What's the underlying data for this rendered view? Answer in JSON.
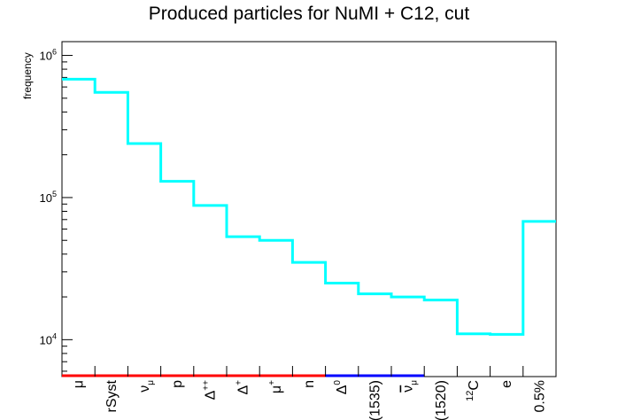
{
  "chart_data": {
    "type": "bar",
    "title": "Produced particles for NuMI + C12, cut",
    "xlabel": "",
    "ylabel": "frequency",
    "yscale": "log",
    "ylim": [
      5500,
      1250000
    ],
    "y_tick_labels": [
      "10^6",
      "10^5",
      "10^4"
    ],
    "categories": [
      "μ",
      "rSyst",
      "ν_μ",
      "p",
      "Δ^{++}",
      "Δ^{+}",
      "μ^{+}",
      "n",
      "Δ^{0}",
      "(1535)",
      "ν̄_μ",
      "(1520)",
      "^{12}C",
      "e",
      "0.5%"
    ],
    "category_display": [
      {
        "main": "μ",
        "sup": "",
        "sub": "",
        "bar": false
      },
      {
        "main": "rSyst",
        "sup": "",
        "sub": "",
        "bar": false
      },
      {
        "main": "ν",
        "sup": "",
        "sub": "μ",
        "bar": false
      },
      {
        "main": "p",
        "sup": "",
        "sub": "",
        "bar": false
      },
      {
        "main": "Δ",
        "sup": "++",
        "sub": "",
        "bar": false
      },
      {
        "main": "Δ",
        "sup": "+",
        "sub": "",
        "bar": false
      },
      {
        "main": "μ",
        "sup": "+",
        "sub": "",
        "bar": false
      },
      {
        "main": "n",
        "sup": "",
        "sub": "",
        "bar": false
      },
      {
        "main": "Δ",
        "sup": "0",
        "sub": "",
        "bar": false
      },
      {
        "main": "(1535)",
        "sup": "",
        "sub": "",
        "bar": false
      },
      {
        "main": "ν",
        "sup": "",
        "sub": "μ",
        "bar": true
      },
      {
        "main": "(1520)",
        "sup": "",
        "sub": "",
        "bar": false
      },
      {
        "main": "C",
        "sup": "12",
        "sub": "",
        "bar": false,
        "pre_sup": true
      },
      {
        "main": "e",
        "sup": "",
        "sub": "",
        "bar": false
      },
      {
        "main": "0.5%",
        "sup": "",
        "sub": "",
        "bar": false
      }
    ],
    "values": [
      680000,
      550000,
      240000,
      130000,
      88000,
      53000,
      50000,
      35000,
      25000,
      21000,
      20000,
      19000,
      11000,
      10900,
      68000
    ],
    "line_color": "#00ffff",
    "axis_bands": [
      {
        "from": 0,
        "to": 8,
        "color": "#ff0000"
      },
      {
        "from": 8,
        "to": 11,
        "color": "#0000ff"
      }
    ],
    "grid": false,
    "legend": "none"
  }
}
